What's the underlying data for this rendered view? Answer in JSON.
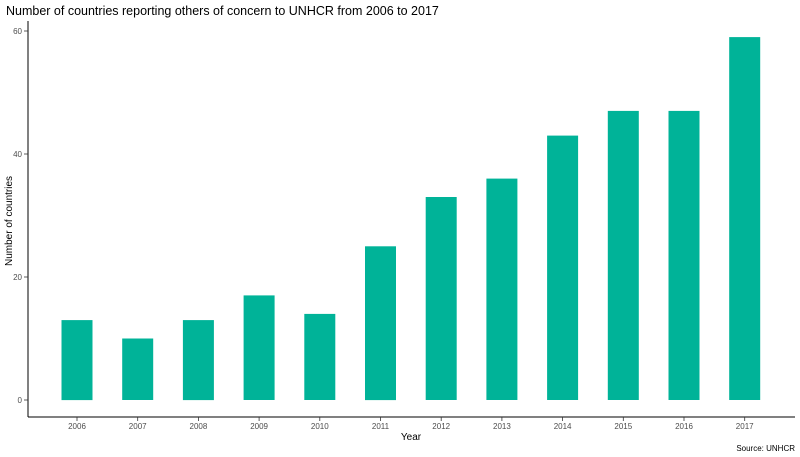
{
  "chart_data": {
    "type": "bar",
    "title": "Number of countries reporting others of concern to UNHCR from 2006 to 2017",
    "xlabel": "Year",
    "ylabel": "Number of countries",
    "source": "Source: UNHCR",
    "categories": [
      "2006",
      "2007",
      "2008",
      "2009",
      "2010",
      "2011",
      "2012",
      "2013",
      "2014",
      "2015",
      "2016",
      "2017"
    ],
    "values": [
      13,
      10,
      13,
      17,
      14,
      25,
      33,
      36,
      43,
      47,
      47,
      59
    ],
    "ylim": [
      0,
      62
    ],
    "yticks": [
      0,
      20,
      40,
      60
    ],
    "bar_color": "#00b398",
    "grid": false,
    "legend": "none"
  }
}
